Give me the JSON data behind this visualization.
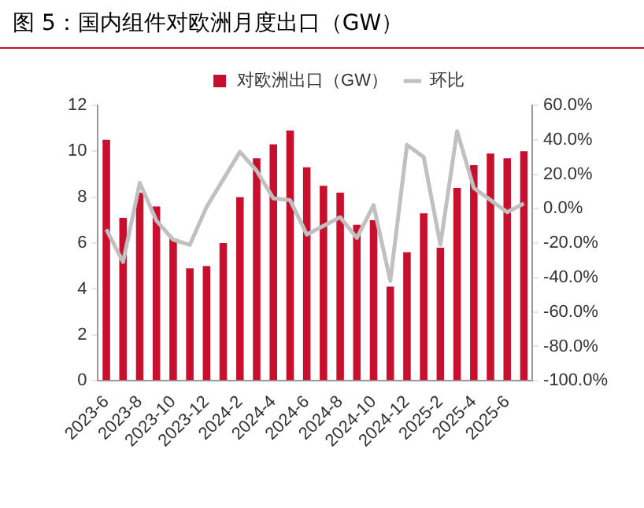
{
  "chart_data": {
    "type": "bar",
    "title": "图 5：国内组件对欧洲月度出口（GW）",
    "categories": [
      "2023-6",
      null,
      "2023-8",
      null,
      "2023-10",
      null,
      "2023-12",
      null,
      "2024-2",
      null,
      "2024-4",
      null,
      "2024-6",
      null,
      "2024-8",
      null,
      "2024-10",
      null,
      "2024-12",
      null,
      "2025-2",
      null,
      "2025-4",
      null,
      "2025-6",
      null
    ],
    "series": [
      {
        "name": "对欧洲出口（GW）",
        "color": "#c8102e",
        "values": [
          10.5,
          7.1,
          8.2,
          7.6,
          6.2,
          4.9,
          5.0,
          6.0,
          8.0,
          9.7,
          10.3,
          10.9,
          9.3,
          8.5,
          8.2,
          6.8,
          7.0,
          4.1,
          5.6,
          7.3,
          5.8,
          8.4,
          9.4,
          9.9,
          9.7,
          10.0
        ]
      },
      {
        "name": "环比",
        "type": "line",
        "axis": "y2",
        "color": "#c0c0c0",
        "values": [
          -12,
          -31,
          15,
          -7,
          -18,
          -21,
          1,
          17,
          33,
          22,
          6,
          5,
          -15,
          -10,
          -5,
          -17,
          2,
          -42,
          37,
          30,
          -21,
          45,
          12,
          5,
          -2,
          3
        ]
      }
    ],
    "ylim": [
      0,
      12
    ],
    "yticks": [
      0,
      2,
      4,
      6,
      8,
      10,
      12
    ],
    "y2lim": [
      -100,
      60
    ],
    "y2ticks": [
      {
        "value": -100,
        "label": "-100.0%"
      },
      {
        "value": -80,
        "label": "-80.0%"
      },
      {
        "value": -60,
        "label": "-60.0%"
      },
      {
        "value": -40,
        "label": "-40.0%"
      },
      {
        "value": -20,
        "label": "-20.0%"
      },
      {
        "value": 0,
        "label": "0.0%"
      },
      {
        "value": 20,
        "label": "20.0%"
      },
      {
        "value": 40,
        "label": "40.0%"
      },
      {
        "value": 60,
        "label": "60.0%"
      }
    ],
    "legend": "top",
    "grid": false,
    "marker": "none",
    "line_style": "solid"
  }
}
